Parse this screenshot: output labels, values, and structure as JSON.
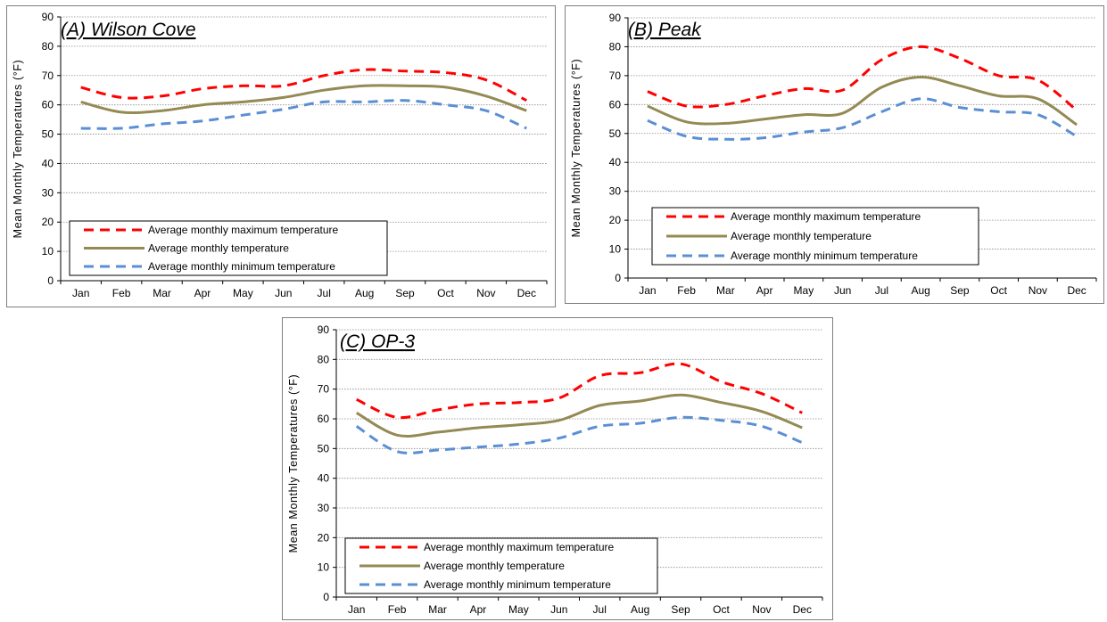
{
  "chart_data": [
    {
      "type": "line",
      "title": "(A) Wilson Cove",
      "ylabel": "Mean Monthly Temperatures (°F)",
      "ylim": [
        0,
        90
      ],
      "yticks": [
        0,
        10,
        20,
        30,
        40,
        50,
        60,
        70,
        80,
        90
      ],
      "categories": [
        "Jan",
        "Feb",
        "Mar",
        "Apr",
        "May",
        "Jun",
        "Jul",
        "Aug",
        "Sep",
        "Oct",
        "Nov",
        "Dec"
      ],
      "grid": true,
      "legend_position": "lower-left",
      "series": [
        {
          "name": "Average monthly maximum temperature",
          "color": "#ff0000",
          "dash": "dashed",
          "values": [
            66,
            62.5,
            63,
            65.5,
            66.5,
            66.5,
            70,
            72,
            71.5,
            71,
            68.5,
            61.5
          ]
        },
        {
          "name": "Average monthly temperature",
          "color": "#948a54",
          "dash": "solid",
          "values": [
            61,
            57.5,
            58,
            60,
            61,
            62.5,
            65,
            66.5,
            66.5,
            66,
            63,
            58
          ]
        },
        {
          "name": "Average monthly minimum temperature",
          "color": "#5b8fd4",
          "dash": "dashed",
          "values": [
            52,
            52,
            53.5,
            54.5,
            56.5,
            58.5,
            61,
            61,
            61.5,
            60,
            58,
            52
          ]
        }
      ]
    },
    {
      "type": "line",
      "title": "(B) Peak",
      "ylabel": "Mean Monthly Temperatures (°F)",
      "ylim": [
        0,
        90
      ],
      "yticks": [
        0,
        10,
        20,
        30,
        40,
        50,
        60,
        70,
        80,
        90
      ],
      "categories": [
        "Jan",
        "Feb",
        "Mar",
        "Apr",
        "May",
        "Jun",
        "Jul",
        "Aug",
        "Sep",
        "Oct",
        "Nov",
        "Dec"
      ],
      "grid": true,
      "legend_position": "lower-left",
      "series": [
        {
          "name": "Average monthly maximum temperature",
          "color": "#ff0000",
          "dash": "dashed",
          "values": [
            64.5,
            59.5,
            60,
            63,
            65.5,
            65,
            75.5,
            80,
            76,
            70,
            68.5,
            58
          ]
        },
        {
          "name": "Average monthly temperature",
          "color": "#948a54",
          "dash": "solid",
          "values": [
            59.5,
            54,
            53.5,
            55,
            56.5,
            57,
            66,
            69.5,
            66.5,
            63,
            62,
            53
          ]
        },
        {
          "name": "Average monthly minimum temperature",
          "color": "#5b8fd4",
          "dash": "dashed",
          "values": [
            54.5,
            49,
            48,
            48.5,
            50.5,
            52,
            57.5,
            62,
            59,
            57.5,
            56.5,
            49
          ]
        }
      ]
    },
    {
      "type": "line",
      "title": "(C) OP-3",
      "ylabel": "Mean Monthly Temperatures (°F)",
      "ylim": [
        0,
        90
      ],
      "yticks": [
        0,
        10,
        20,
        30,
        40,
        50,
        60,
        70,
        80,
        90
      ],
      "categories": [
        "Jan",
        "Feb",
        "Mar",
        "Apr",
        "May",
        "Jun",
        "Jul",
        "Aug",
        "Sep",
        "Oct",
        "Nov",
        "Dec"
      ],
      "grid": true,
      "legend_position": "lower-left",
      "series": [
        {
          "name": "Average monthly maximum temperature",
          "color": "#ff0000",
          "dash": "dashed",
          "values": [
            66.5,
            60.5,
            63,
            65,
            65.5,
            67,
            74.5,
            75.5,
            78.5,
            72.5,
            68.5,
            62
          ]
        },
        {
          "name": "Average monthly temperature",
          "color": "#948a54",
          "dash": "solid",
          "values": [
            62,
            54.5,
            55.5,
            57,
            58,
            59.5,
            64.5,
            66,
            68,
            65.5,
            62.5,
            57
          ]
        },
        {
          "name": "Average monthly minimum temperature",
          "color": "#5b8fd4",
          "dash": "dashed",
          "values": [
            57.5,
            49,
            49.5,
            50.5,
            51.5,
            53.5,
            57.5,
            58.5,
            60.5,
            59.5,
            57.5,
            52
          ]
        }
      ]
    }
  ]
}
